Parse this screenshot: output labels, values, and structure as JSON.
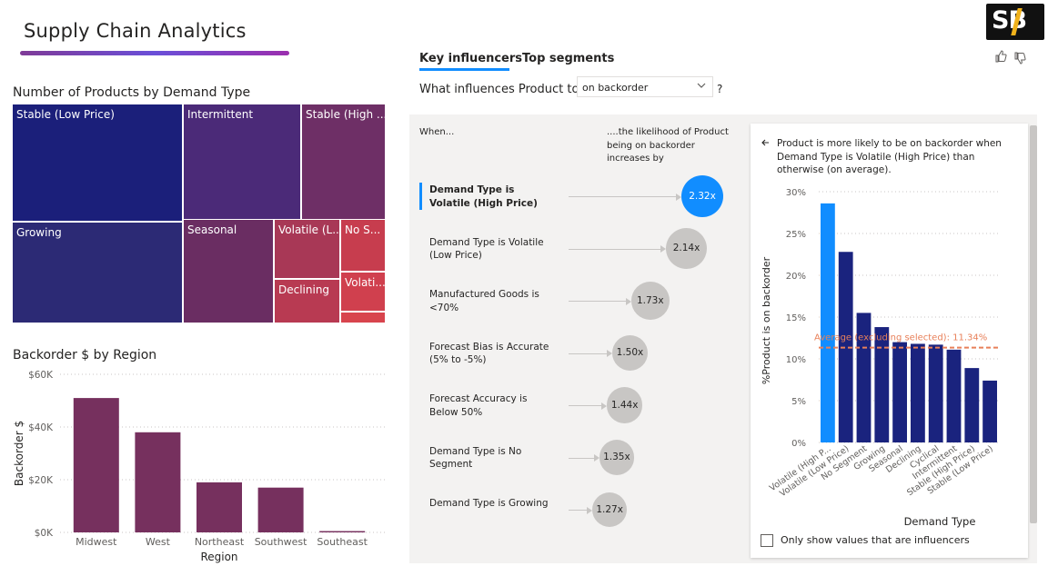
{
  "page": {
    "title": "Supply Chain Analytics",
    "logo_text": "SB"
  },
  "colors": {
    "treemap_dark": "#1a237e",
    "treemap_purple": "#4e2a7a",
    "treemap_plum": "#7b2d5e",
    "treemap_red": "#c63c4c",
    "bar_plum": "#76305e",
    "ki_selected": "#118dff",
    "ki_bubble": "#c8c6c4",
    "detail_bar": "#1a237e",
    "detail_bar_selected": "#118dff",
    "average_line": "#e8805a"
  },
  "treemap": {
    "title": "Number of Products by Demand Type",
    "cells": [
      "Stable (Low Price)",
      "Intermittent",
      "Stable (High ...",
      "Growing",
      "Seasonal",
      "Volatile (L...",
      "No S...",
      "Volati...",
      "Declining",
      ""
    ]
  },
  "bar_chart": {
    "title": "Backorder $ by Region",
    "chart_data": {
      "type": "bar",
      "categories": [
        "Midwest",
        "West",
        "Northeast",
        "Southwest",
        "Southeast"
      ],
      "values": [
        51000,
        38000,
        19000,
        17000,
        500
      ],
      "xlabel": "Region",
      "ylabel": "Backorder $",
      "ylim": [
        0,
        60000
      ],
      "y_ticks": [
        "$0K",
        "$20K",
        "$40K",
        "$60K"
      ],
      "grid": true
    }
  },
  "key_influencers": {
    "tabs": [
      "Key influencers",
      "Top segments"
    ],
    "question_prefix": "What influences Product to be",
    "dropdown_value": "on backorder",
    "question_mark": "?",
    "col_when": "When...",
    "col_likelihood": "....the likelihood of Product being on backorder increases by",
    "items": [
      {
        "label": "Demand Type is Volatile (High Price)",
        "value": "2.32x",
        "selected": true
      },
      {
        "label": "Demand Type is Volatile (Low Price)",
        "value": "2.14x",
        "selected": false
      },
      {
        "label": "Manufactured Goods is <70%",
        "value": "1.73x",
        "selected": false
      },
      {
        "label": "Forecast Bias is Accurate (5% to -5%)",
        "value": "1.50x",
        "selected": false
      },
      {
        "label": "Forecast Accuracy is Below 50%",
        "value": "1.44x",
        "selected": false
      },
      {
        "label": "Demand Type is No Segment",
        "value": "1.35x",
        "selected": false
      },
      {
        "label": "Demand Type is Growing",
        "value": "1.27x",
        "selected": false
      }
    ],
    "detail": {
      "back_icon": "arrow-left-icon",
      "text": "Product is more likely to be on backorder when Demand Type is Volatile (High Price) than otherwise (on average).",
      "checkbox_label": "Only show values that are influencers",
      "chart_data": {
        "type": "bar",
        "categories": [
          "Volatile (High P...",
          "Volatile (Low Price)",
          "No Segment",
          "Growing",
          "Seasonal",
          "Declining",
          "Cyclical",
          "Intermittent",
          "Stable (High Price)",
          "Stable (Low Price)"
        ],
        "values": [
          28.6,
          22.8,
          15.5,
          13.8,
          12.0,
          11.8,
          11.7,
          11.1,
          8.9,
          7.4
        ],
        "xlabel": "Demand Type",
        "ylabel": "%Product is on backorder",
        "ylim": [
          0,
          30
        ],
        "y_ticks": [
          "0%",
          "5%",
          "10%",
          "15%",
          "20%",
          "25%",
          "30%"
        ],
        "average_value": 11.34,
        "average_label": "Average (excluding selected): 11.34%",
        "grid": true
      }
    }
  },
  "icons": {
    "thumbs_up": "thumbs-up-icon",
    "thumbs_down": "thumbs-down-icon",
    "chevron": "chevron-down-icon"
  }
}
